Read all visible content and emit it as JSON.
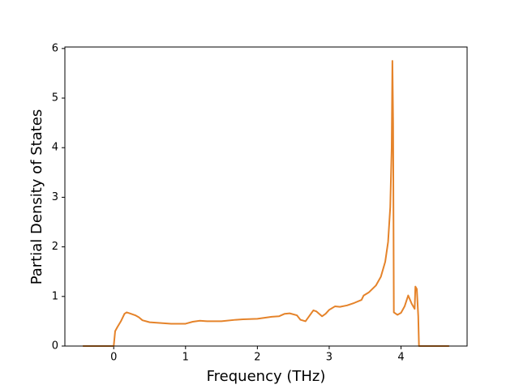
{
  "chart_data": {
    "type": "line",
    "x_label": "Frequency (THz)",
    "y_label": "Partial Density of States",
    "color": "#e5832a",
    "x": [
      -0.43,
      0,
      0.02,
      0.05,
      0.1,
      0.15,
      0.18,
      0.22,
      0.3,
      0.35,
      0.4,
      0.5,
      0.6,
      0.8,
      1.0,
      1.1,
      1.2,
      1.3,
      1.5,
      1.7,
      1.8,
      2.0,
      2.2,
      2.3,
      2.38,
      2.45,
      2.55,
      2.6,
      2.67,
      2.72,
      2.78,
      2.82,
      2.9,
      2.95,
      3.0,
      3.08,
      3.15,
      3.25,
      3.35,
      3.45,
      3.48,
      3.55,
      3.65,
      3.72,
      3.78,
      3.82,
      3.85,
      3.87,
      3.88,
      3.89,
      3.9,
      3.95,
      4.0,
      4.05,
      4.1,
      4.15,
      4.19,
      4.2,
      4.22,
      4.24,
      4.25,
      4.3,
      4.67
    ],
    "values": [
      0,
      0,
      0.3,
      0.38,
      0.5,
      0.65,
      0.68,
      0.66,
      0.62,
      0.58,
      0.52,
      0.48,
      0.47,
      0.45,
      0.45,
      0.49,
      0.51,
      0.5,
      0.5,
      0.53,
      0.54,
      0.55,
      0.59,
      0.6,
      0.65,
      0.66,
      0.62,
      0.53,
      0.5,
      0.6,
      0.72,
      0.7,
      0.6,
      0.65,
      0.73,
      0.8,
      0.79,
      0.82,
      0.87,
      0.93,
      1.02,
      1.08,
      1.22,
      1.4,
      1.7,
      2.1,
      2.8,
      4.0,
      5.75,
      4.5,
      0.68,
      0.63,
      0.67,
      0.8,
      1.02,
      0.85,
      0.75,
      1.2,
      1.15,
      0.6,
      0,
      0,
      0
    ],
    "xlim": [
      -0.68,
      4.92
    ],
    "xticks": [
      0,
      1,
      2,
      3,
      4
    ],
    "ylim": [
      0,
      6.03
    ],
    "yticks": [
      0,
      1,
      2,
      3,
      4,
      5,
      6
    ]
  }
}
